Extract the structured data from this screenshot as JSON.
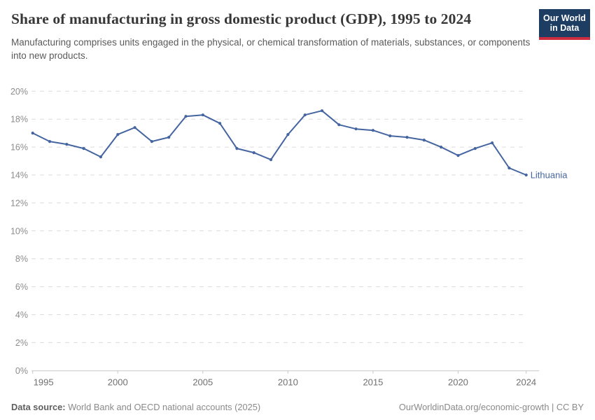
{
  "header": {
    "title": "Share of manufacturing in gross domestic product (GDP), 1995 to 2024",
    "subtitle": "Manufacturing comprises units engaged in the physical, or chemical transformation of materials, substances, or components into new products.",
    "logo": {
      "line1": "Our World",
      "line2": "in Data",
      "bg_color": "#1d3d63",
      "accent_color": "#cb2d3f"
    }
  },
  "chart_data": {
    "type": "line",
    "title": "Share of manufacturing in gross domestic product (GDP), 1995 to 2024",
    "x": [
      1995,
      1996,
      1997,
      1998,
      1999,
      2000,
      2001,
      2002,
      2003,
      2004,
      2005,
      2006,
      2007,
      2008,
      2009,
      2010,
      2011,
      2012,
      2013,
      2014,
      2015,
      2016,
      2017,
      2018,
      2019,
      2020,
      2021,
      2022,
      2023,
      2024
    ],
    "series": [
      {
        "name": "Lithuania",
        "color": "#4565a0",
        "values": [
          17.0,
          16.4,
          16.2,
          15.9,
          15.3,
          16.9,
          17.4,
          16.4,
          16.7,
          18.2,
          18.3,
          17.7,
          15.9,
          15.6,
          15.1,
          16.9,
          18.3,
          18.6,
          17.6,
          17.3,
          17.2,
          16.8,
          16.7,
          16.5,
          16.0,
          15.4,
          15.9,
          16.3,
          14.5,
          14.0
        ]
      }
    ],
    "xlabel": "",
    "ylabel": "",
    "xlim": [
      1995,
      2024
    ],
    "ylim": [
      0,
      20
    ],
    "xticks": [
      1995,
      2000,
      2005,
      2010,
      2015,
      2020,
      2024
    ],
    "yticks": [
      0,
      2,
      4,
      6,
      8,
      10,
      12,
      14,
      16,
      18,
      20
    ],
    "ytick_suffix": "%",
    "grid": "horizontal-dashed",
    "legend_position": "end-of-line-label",
    "colors": {
      "grid": "#dcdcdc",
      "axis": "#c8c8c8",
      "ytick_label": "#8c8c8c",
      "xtick_label": "#707070"
    }
  },
  "footer": {
    "datasource_label": "Data source:",
    "datasource_text": " World Bank and OECD national accounts (2025)",
    "credit": "OurWorldinData.org/economic-growth | CC BY"
  }
}
